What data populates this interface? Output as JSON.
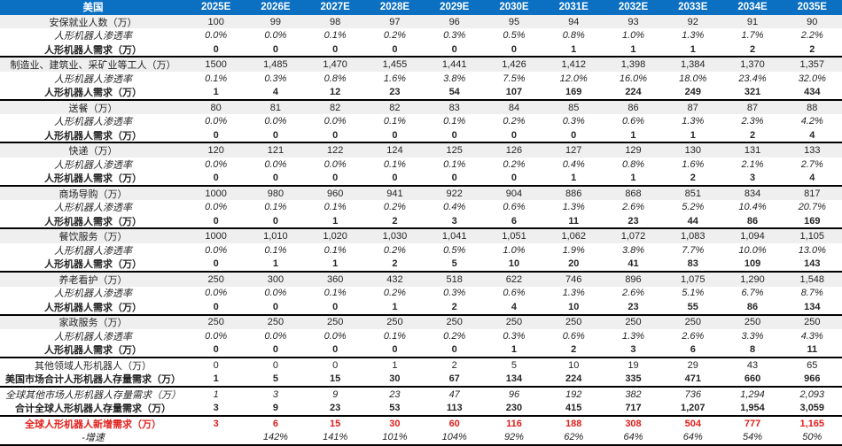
{
  "colors": {
    "header_bg": "#0b70c2",
    "header_text": "#ffffff",
    "band_bg": "#efefef",
    "highlight_red": "#e0201c",
    "section_border": "#000000"
  },
  "table": {
    "corner_label": "美国",
    "years": [
      "2025E",
      "2026E",
      "2027E",
      "2028E",
      "2029E",
      "2030E",
      "2031E",
      "2032E",
      "2033E",
      "2034E",
      "2035E"
    ],
    "rows": [
      {
        "label": "安保就业人数（万）",
        "style": "category",
        "border_bottom": false,
        "values": [
          "100",
          "99",
          "98",
          "97",
          "96",
          "95",
          "94",
          "93",
          "92",
          "91",
          "90"
        ]
      },
      {
        "label": "人形机器人渗透率",
        "style": "penetration",
        "border_bottom": false,
        "values": [
          "0.0%",
          "0.0%",
          "0.1%",
          "0.2%",
          "0.3%",
          "0.5%",
          "0.8%",
          "1.0%",
          "1.3%",
          "1.7%",
          "2.2%"
        ]
      },
      {
        "label": "人形机器人需求（万）",
        "style": "demand",
        "border_bottom": true,
        "values": [
          "0",
          "0",
          "0",
          "0",
          "0",
          "0",
          "1",
          "1",
          "1",
          "2",
          "2"
        ]
      },
      {
        "label": "制造业、建筑业、采矿业等工人（万）",
        "style": "category",
        "border_bottom": false,
        "values": [
          "1500",
          "1,485",
          "1,470",
          "1,455",
          "1,441",
          "1,426",
          "1,412",
          "1,398",
          "1,384",
          "1,370",
          "1,357"
        ]
      },
      {
        "label": "人形机器人渗透率",
        "style": "penetration",
        "border_bottom": false,
        "values": [
          "0.1%",
          "0.3%",
          "0.8%",
          "1.6%",
          "3.8%",
          "7.5%",
          "12.0%",
          "16.0%",
          "18.0%",
          "23.4%",
          "32.0%"
        ]
      },
      {
        "label": "人形机器人需求（万）",
        "style": "demand",
        "border_bottom": true,
        "values": [
          "1",
          "4",
          "12",
          "23",
          "54",
          "107",
          "169",
          "224",
          "249",
          "321",
          "434"
        ]
      },
      {
        "label": "送餐（万）",
        "style": "category",
        "border_bottom": false,
        "values": [
          "80",
          "81",
          "82",
          "82",
          "83",
          "84",
          "85",
          "86",
          "87",
          "87",
          "88"
        ]
      },
      {
        "label": "人形机器人渗透率",
        "style": "penetration",
        "border_bottom": false,
        "values": [
          "0.0%",
          "0.0%",
          "0.0%",
          "0.1%",
          "0.1%",
          "0.2%",
          "0.3%",
          "0.6%",
          "1.3%",
          "2.3%",
          "4.2%"
        ]
      },
      {
        "label": "人形机器人需求（万）",
        "style": "demand",
        "border_bottom": true,
        "values": [
          "0",
          "0",
          "0",
          "0",
          "0",
          "0",
          "0",
          "1",
          "1",
          "2",
          "4"
        ]
      },
      {
        "label": "快递（万）",
        "style": "category",
        "border_bottom": false,
        "values": [
          "120",
          "121",
          "122",
          "124",
          "125",
          "126",
          "127",
          "129",
          "130",
          "131",
          "133"
        ]
      },
      {
        "label": "人形机器人渗透率",
        "style": "penetration",
        "border_bottom": false,
        "values": [
          "0.0%",
          "0.0%",
          "0.0%",
          "0.1%",
          "0.1%",
          "0.2%",
          "0.4%",
          "0.8%",
          "1.6%",
          "2.1%",
          "2.7%"
        ]
      },
      {
        "label": "人形机器人需求（万）",
        "style": "demand",
        "border_bottom": true,
        "values": [
          "0",
          "0",
          "0",
          "0",
          "0",
          "0",
          "1",
          "1",
          "2",
          "3",
          "4"
        ]
      },
      {
        "label": "商场导购（万）",
        "style": "category",
        "border_bottom": false,
        "values": [
          "1000",
          "980",
          "960",
          "941",
          "922",
          "904",
          "886",
          "868",
          "851",
          "834",
          "817"
        ]
      },
      {
        "label": "人形机器人渗透率",
        "style": "penetration",
        "border_bottom": false,
        "values": [
          "0.0%",
          "0.1%",
          "0.1%",
          "0.2%",
          "0.4%",
          "0.6%",
          "1.3%",
          "2.6%",
          "5.2%",
          "10.4%",
          "20.7%"
        ]
      },
      {
        "label": "人形机器人需求（万）",
        "style": "demand",
        "border_bottom": true,
        "values": [
          "0",
          "0",
          "1",
          "2",
          "3",
          "6",
          "11",
          "23",
          "44",
          "86",
          "169"
        ]
      },
      {
        "label": "餐饮服务（万）",
        "style": "category",
        "border_bottom": false,
        "values": [
          "1000",
          "1,010",
          "1,020",
          "1,030",
          "1,041",
          "1,051",
          "1,062",
          "1,072",
          "1,083",
          "1,094",
          "1,105"
        ]
      },
      {
        "label": "人形机器人渗透率",
        "style": "penetration",
        "border_bottom": false,
        "values": [
          "0.0%",
          "0.1%",
          "0.1%",
          "0.2%",
          "0.5%",
          "1.0%",
          "1.9%",
          "3.8%",
          "7.7%",
          "10.0%",
          "13.0%"
        ]
      },
      {
        "label": "人形机器人需求（万）",
        "style": "demand",
        "border_bottom": true,
        "values": [
          "0",
          "1",
          "1",
          "2",
          "5",
          "10",
          "20",
          "41",
          "83",
          "109",
          "143"
        ]
      },
      {
        "label": "养老看护（万）",
        "style": "category",
        "border_bottom": false,
        "values": [
          "250",
          "300",
          "360",
          "432",
          "518",
          "622",
          "746",
          "896",
          "1,075",
          "1,290",
          "1,548"
        ]
      },
      {
        "label": "人形机器人渗透率",
        "style": "penetration",
        "border_bottom": false,
        "values": [
          "0.0%",
          "0.0%",
          "0.1%",
          "0.2%",
          "0.3%",
          "0.6%",
          "1.3%",
          "2.6%",
          "5.1%",
          "6.7%",
          "8.7%"
        ]
      },
      {
        "label": "人形机器人需求（万）",
        "style": "demand",
        "border_bottom": true,
        "values": [
          "0",
          "0",
          "0",
          "1",
          "2",
          "4",
          "10",
          "23",
          "55",
          "86",
          "134"
        ]
      },
      {
        "label": "家政服务（万）",
        "style": "category",
        "border_bottom": false,
        "values": [
          "250",
          "250",
          "250",
          "250",
          "250",
          "250",
          "250",
          "250",
          "250",
          "250",
          "250"
        ]
      },
      {
        "label": "人形机器人渗透率",
        "style": "penetration",
        "border_bottom": false,
        "values": [
          "0.0%",
          "0.0%",
          "0.0%",
          "0.1%",
          "0.2%",
          "0.3%",
          "0.6%",
          "1.3%",
          "2.6%",
          "3.3%",
          "4.3%"
        ]
      },
      {
        "label": "人形机器人需求（万）",
        "style": "demand",
        "border_bottom": true,
        "values": [
          "0",
          "0",
          "0",
          "0",
          "0",
          "1",
          "2",
          "3",
          "6",
          "8",
          "11"
        ]
      },
      {
        "label": "其他领域人形机器人（万）",
        "style": "plain",
        "border_bottom": false,
        "values": [
          "0",
          "0",
          "0",
          "1",
          "2",
          "5",
          "10",
          "19",
          "29",
          "43",
          "65"
        ]
      },
      {
        "label": "美国市场合计人形机器人存量需求（万）",
        "style": "bold",
        "border_bottom": true,
        "values": [
          "1",
          "5",
          "15",
          "30",
          "67",
          "134",
          "224",
          "335",
          "471",
          "660",
          "966"
        ]
      },
      {
        "label": "全球其他市场人形机器人存量需求（万）",
        "style": "italic",
        "border_bottom": false,
        "values": [
          "1",
          "3",
          "9",
          "23",
          "47",
          "96",
          "192",
          "382",
          "736",
          "1,294",
          "2,093"
        ]
      },
      {
        "label": "合计全球人形机器人存量需求（万）",
        "style": "bold",
        "border_bottom": true,
        "values": [
          "3",
          "9",
          "23",
          "53",
          "113",
          "230",
          "415",
          "717",
          "1,207",
          "1,954",
          "3,059"
        ]
      },
      {
        "label": "全球人形机器人新增需求（万）",
        "style": "red-bold",
        "border_bottom": false,
        "values": [
          "3",
          "6",
          "15",
          "30",
          "60",
          "116",
          "188",
          "308",
          "504",
          "777",
          "1,165"
        ]
      },
      {
        "label": "-增速",
        "style": "italic",
        "border_bottom": "thick",
        "values": [
          "",
          "142%",
          "141%",
          "101%",
          "104%",
          "92%",
          "62%",
          "64%",
          "64%",
          "54%",
          "50%"
        ]
      }
    ]
  }
}
